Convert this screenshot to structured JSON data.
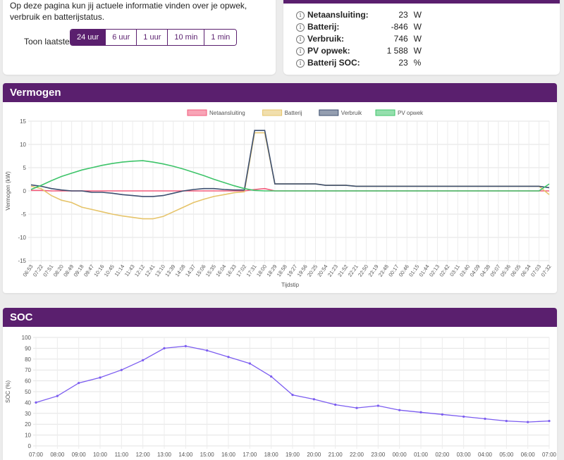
{
  "intro": {
    "text": "Op deze pagina kun jij actuele informatie vinden over je opwek, verbruik en batterijstatus.",
    "range_label": "Toon laatste:",
    "ranges": [
      "24 uur",
      "6 uur",
      "1 uur",
      "10 min",
      "1 min"
    ],
    "active_range": "24 uur"
  },
  "status": {
    "rows": [
      {
        "label": "Netaansluiting:",
        "value": "23",
        "unit": "W"
      },
      {
        "label": "Batterij:",
        "value": "-846",
        "unit": "W"
      },
      {
        "label": "Verbruik:",
        "value": "746",
        "unit": "W"
      },
      {
        "label": "PV opwek:",
        "value": "1 588",
        "unit": "W"
      },
      {
        "label": "Batterij SOC:",
        "value": "23",
        "unit": "%"
      }
    ]
  },
  "power": {
    "title": "Vermogen",
    "xlabel": "Tijdstip",
    "ylabel": "Vermogen (kW)",
    "legend": [
      {
        "name": "Netaansluiting",
        "color": "#f25a7a"
      },
      {
        "name": "Batterij",
        "color": "#e6c46a"
      },
      {
        "name": "Verbruik",
        "color": "#3d4f70"
      },
      {
        "name": "PV opwek",
        "color": "#3ec46a"
      }
    ]
  },
  "soc": {
    "title": "SOC",
    "ylabel": "SOC (%)"
  },
  "chart_data": [
    {
      "type": "line",
      "title": "Vermogen",
      "xlabel": "Tijdstip",
      "ylabel": "Vermogen (kW)",
      "ylim": [
        -15,
        15
      ],
      "yticks": [
        15,
        10,
        5,
        0,
        -5,
        -10,
        -15
      ],
      "grid": true,
      "legend_position": "top",
      "x": [
        "06:53",
        "07:22",
        "07:51",
        "08:20",
        "08:49",
        "09:18",
        "09:47",
        "10:16",
        "10:45",
        "11:14",
        "11:43",
        "12:12",
        "12:41",
        "13:10",
        "13:39",
        "14:08",
        "14:37",
        "15:06",
        "15:35",
        "16:04",
        "16:33",
        "17:02",
        "17:31",
        "18:00",
        "18:29",
        "18:58",
        "19:27",
        "19:56",
        "20:25",
        "20:54",
        "21:23",
        "21:52",
        "22:21",
        "22:50",
        "23:19",
        "23:48",
        "00:17",
        "00:46",
        "01:15",
        "01:44",
        "02:13",
        "02:42",
        "03:11",
        "03:40",
        "04:09",
        "04:38",
        "05:07",
        "05:36",
        "06:05",
        "06:34",
        "07:03",
        "07:32"
      ],
      "series": [
        {
          "name": "Netaansluiting",
          "color": "#f25a7a",
          "values": [
            0.1,
            0.1,
            0.0,
            0.0,
            0.0,
            0.0,
            0.0,
            0.0,
            0.0,
            0.0,
            0.0,
            0.0,
            0.0,
            0.0,
            0.0,
            0.0,
            0.0,
            0.0,
            0.0,
            0.0,
            0.0,
            0.0,
            0.3,
            0.5,
            0.0,
            0.0,
            0.0,
            0.0,
            0.0,
            0.0,
            0.0,
            0.0,
            0.0,
            0.0,
            0.0,
            0.0,
            0.0,
            0.0,
            0.0,
            0.0,
            0.0,
            0.0,
            0.0,
            0.0,
            0.0,
            0.0,
            0.0,
            0.0,
            0.0,
            0.0,
            0.0,
            0.0
          ]
        },
        {
          "name": "Batterij",
          "color": "#e6c46a",
          "values": [
            1.0,
            0.5,
            -1.0,
            -2.0,
            -2.5,
            -3.5,
            -4.0,
            -4.5,
            -5.0,
            -5.4,
            -5.7,
            -6.0,
            -6.0,
            -5.5,
            -4.5,
            -3.5,
            -2.5,
            -1.8,
            -1.2,
            -0.8,
            -0.4,
            -0.2,
            12.5,
            12.5,
            1.5,
            1.5,
            1.5,
            1.5,
            1.5,
            1.2,
            1.2,
            1.2,
            1.0,
            1.0,
            1.0,
            1.0,
            1.0,
            1.0,
            1.0,
            1.0,
            1.0,
            1.0,
            1.0,
            1.0,
            1.0,
            1.0,
            1.0,
            1.0,
            1.0,
            1.0,
            1.0,
            -0.8
          ]
        },
        {
          "name": "Verbruik",
          "color": "#3d4f70",
          "values": [
            1.3,
            1.0,
            0.5,
            0.2,
            0.0,
            0.0,
            -0.3,
            -0.3,
            -0.5,
            -0.8,
            -1.0,
            -1.2,
            -1.2,
            -1.0,
            -0.5,
            0.0,
            0.3,
            0.5,
            0.5,
            0.3,
            0.2,
            0.2,
            13.0,
            13.0,
            1.5,
            1.5,
            1.5,
            1.5,
            1.5,
            1.2,
            1.2,
            1.2,
            1.0,
            1.0,
            1.0,
            1.0,
            1.0,
            1.0,
            1.0,
            1.0,
            1.0,
            1.0,
            1.0,
            1.0,
            1.0,
            1.0,
            1.0,
            1.0,
            1.0,
            1.0,
            1.0,
            0.7
          ]
        },
        {
          "name": "PV opwek",
          "color": "#3ec46a",
          "values": [
            0.3,
            1.2,
            2.2,
            3.1,
            3.8,
            4.5,
            5.0,
            5.5,
            5.9,
            6.2,
            6.4,
            6.5,
            6.2,
            5.8,
            5.3,
            4.7,
            4.0,
            3.3,
            2.5,
            1.8,
            1.1,
            0.5,
            0.1,
            0.0,
            0.0,
            0.0,
            0.0,
            0.0,
            0.0,
            0.0,
            0.0,
            0.0,
            0.0,
            0.0,
            0.0,
            0.0,
            0.0,
            0.0,
            0.0,
            0.0,
            0.0,
            0.0,
            0.0,
            0.0,
            0.0,
            0.0,
            0.0,
            0.0,
            0.0,
            0.0,
            0.0,
            1.5
          ]
        }
      ]
    },
    {
      "type": "line",
      "title": "SOC",
      "xlabel": "",
      "ylabel": "SOC (%)",
      "ylim": [
        0,
        100
      ],
      "yticks": [
        100,
        90,
        80,
        70,
        60,
        50,
        40,
        30,
        20,
        10,
        0
      ],
      "grid": true,
      "x": [
        "07:00",
        "08:00",
        "09:00",
        "10:00",
        "11:00",
        "12:00",
        "13:00",
        "14:00",
        "15:00",
        "16:00",
        "17:00",
        "18:00",
        "19:00",
        "20:00",
        "21:00",
        "22:00",
        "23:00",
        "00:00",
        "01:00",
        "02:00",
        "03:00",
        "04:00",
        "05:00",
        "06:00",
        "07:00"
      ],
      "series": [
        {
          "name": "SOC",
          "color": "#7b5cf0",
          "values": [
            40,
            46,
            58,
            63,
            70,
            79,
            90,
            92,
            88,
            82,
            76,
            64,
            47,
            43,
            38,
            35,
            37,
            33,
            31,
            29,
            27,
            25,
            23,
            22,
            23
          ]
        }
      ]
    }
  ]
}
